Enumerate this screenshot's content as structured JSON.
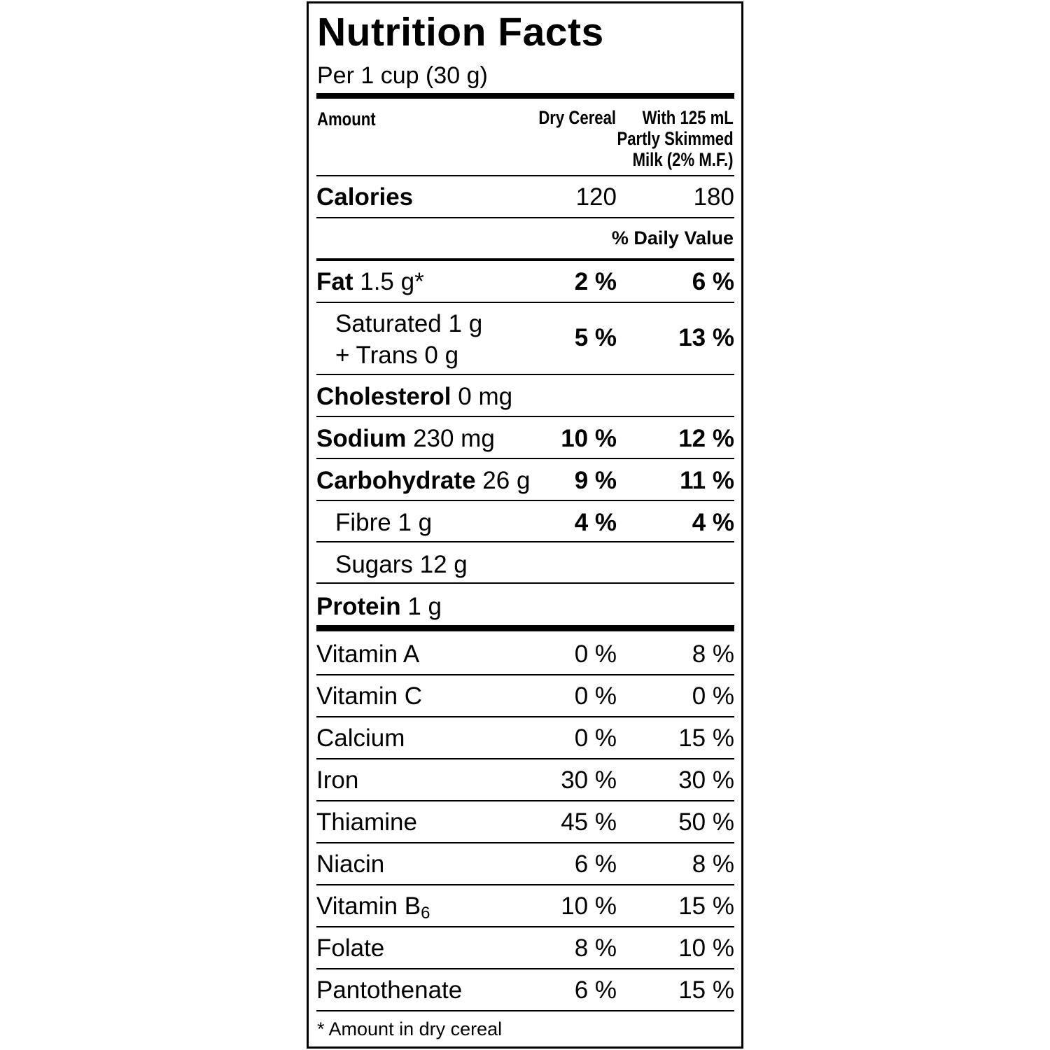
{
  "label": {
    "title": "Nutrition Facts",
    "serving": "Per 1 cup (30 g)",
    "header": {
      "amount": "Amount",
      "col_dry": "Dry Cereal",
      "col_milk_line1": "With 125 mL",
      "col_milk_line2": "Partly Skimmed",
      "col_milk_line3": "Milk (2% M.F.)"
    },
    "calories": {
      "label": "Calories",
      "dry": "120",
      "milk": "180"
    },
    "daily_value_heading": "% Daily Value",
    "nutrients": [
      {
        "name": "Fat",
        "amount": "1.5 g*",
        "dry": "2 %",
        "milk": "6 %"
      },
      {
        "name": "Saturated 1 g",
        "name2": "+ Trans 0 g",
        "dry": "5 %",
        "milk": "13 %"
      },
      {
        "name": "Cholesterol",
        "amount": "0 mg"
      },
      {
        "name": "Sodium",
        "amount": "230 mg",
        "dry": "10 %",
        "milk": "12 %"
      },
      {
        "name": "Carbohydrate",
        "amount": "26 g",
        "dry": "9 %",
        "milk": "11 %"
      },
      {
        "name": "Fibre 1 g",
        "dry": "4 %",
        "milk": "4 %"
      },
      {
        "name": "Sugars 12 g"
      },
      {
        "name": "Protein",
        "amount": "1 g"
      }
    ],
    "vitamins": [
      {
        "name": "Vitamin A",
        "dry": "0 %",
        "milk": "8 %"
      },
      {
        "name": "Vitamin C",
        "dry": "0 %",
        "milk": "0 %"
      },
      {
        "name": "Calcium",
        "dry": "0 %",
        "milk": "15 %"
      },
      {
        "name": "Iron",
        "dry": "30 %",
        "milk": "30 %"
      },
      {
        "name": "Thiamine",
        "dry": "45 %",
        "milk": "50 %"
      },
      {
        "name": "Niacin",
        "dry": "6 %",
        "milk": "8 %"
      },
      {
        "name": "Vitamin B",
        "sub": "6",
        "dry": "10 %",
        "milk": "15 %"
      },
      {
        "name": "Folate",
        "dry": "8 %",
        "milk": "10 %"
      },
      {
        "name": "Pantothenate",
        "dry": "6 %",
        "milk": "15 %"
      }
    ],
    "footnote": "* Amount in dry cereal"
  }
}
